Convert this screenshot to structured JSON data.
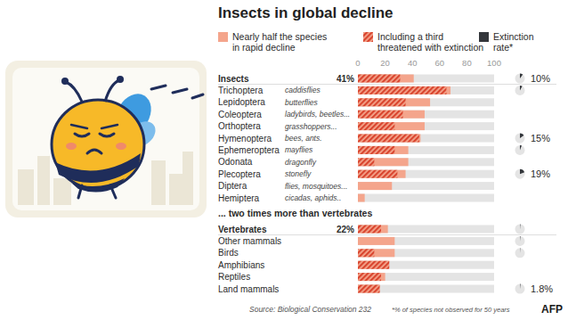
{
  "chart_data": {
    "type": "bar",
    "orientation": "horizontal",
    "title": "Insects in global decline",
    "categories": [
      "Insects",
      "Trichoptera",
      "Lepidoptera",
      "Coleoptera",
      "Orthoptera",
      "Hymenoptera",
      "Ephemeroptera",
      "Odonata",
      "Plecoptera",
      "Diptera",
      "Hemiptera",
      "Vertebrates",
      "Other mammals",
      "Birds",
      "Amphibians",
      "Reptiles",
      "Land mammals"
    ],
    "category_notes": [
      null,
      "caddisflies",
      "butterflies",
      "ladybirds, beetles...",
      "grasshoppers...",
      "bees, ants.",
      "mayflies",
      "dragonfly",
      "stonefly",
      "flies, mosquitoes...",
      "cicadas, aphids..",
      null,
      null,
      null,
      null,
      null,
      null
    ],
    "series": [
      {
        "name": "Nearly half the species in rapid decline",
        "color": "#f4a58c",
        "values": [
          41,
          68,
          53,
          49,
          49,
          46,
          37,
          37,
          35,
          25,
          5,
          22,
          27,
          27,
          23,
          20,
          16
        ],
        "value_labels": [
          "41%",
          null,
          null,
          null,
          null,
          null,
          null,
          null,
          null,
          null,
          null,
          "22%",
          null,
          null,
          null,
          null,
          null
        ]
      },
      {
        "name": "Including a third threatened with extinction",
        "color": "#d9452f",
        "values": [
          31,
          65,
          35,
          33,
          27,
          45,
          27,
          12,
          29,
          null,
          null,
          17,
          null,
          12,
          23,
          17,
          16
        ]
      },
      {
        "name": "Extinction rate*",
        "color": "#33363b",
        "type": "pie",
        "values": [
          10,
          8,
          null,
          null,
          null,
          15,
          6,
          null,
          19,
          null,
          null,
          1.5,
          1.5,
          1,
          null,
          null,
          1.8
        ],
        "value_labels": [
          "10%",
          null,
          null,
          null,
          null,
          "15%",
          null,
          null,
          "19%",
          null,
          null,
          null,
          null,
          null,
          null,
          null,
          "1.8%"
        ]
      }
    ],
    "xlim": [
      0,
      100
    ],
    "xticks": [
      0,
      20,
      40,
      60,
      80,
      100
    ],
    "grid": false,
    "annotations": [
      "... two times more than vertebrates"
    ],
    "source": "Source: Biological Conservation 232",
    "footnote": "*% of species not observed for 50 years",
    "credit": "AFP"
  }
}
